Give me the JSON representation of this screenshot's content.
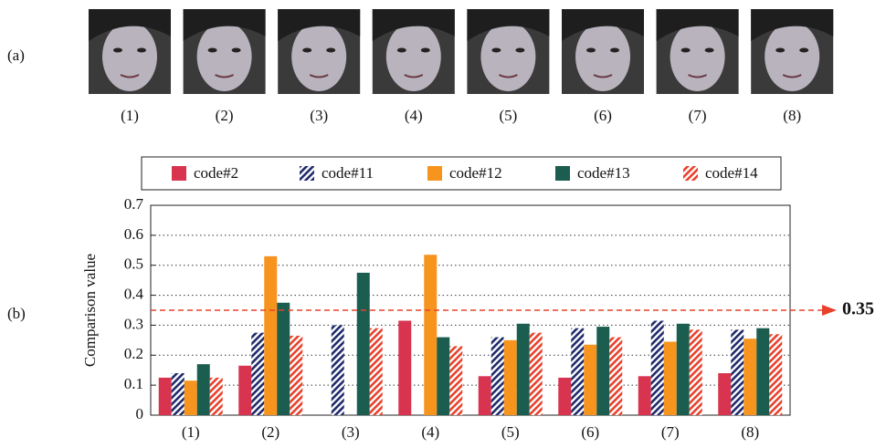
{
  "panel_labels": [
    "(a)",
    "(b)"
  ],
  "image_captions": [
    "(1)",
    "(2)",
    "(3)",
    "(4)",
    "(5)",
    "(6)",
    "(7)",
    "(8)"
  ],
  "chart_data": {
    "type": "bar",
    "y_label": "Comparison value",
    "categories": [
      "(1)",
      "(2)",
      "(3)",
      "(4)",
      "(5)",
      "(6)",
      "(7)",
      "(8)"
    ],
    "series": [
      {
        "name": "code#2",
        "color": "#d8344f",
        "hatch": false,
        "values": [
          0.125,
          0.165,
          null,
          0.315,
          0.13,
          0.125,
          0.13,
          0.14
        ]
      },
      {
        "name": "code#11",
        "color": "#1f2a6b",
        "hatch": true,
        "values": [
          0.14,
          0.275,
          0.3,
          null,
          0.26,
          0.29,
          0.315,
          0.285
        ]
      },
      {
        "name": "code#12",
        "color": "#f7941d",
        "hatch": false,
        "values": [
          0.115,
          0.53,
          null,
          0.535,
          0.25,
          0.235,
          0.245,
          0.255
        ]
      },
      {
        "name": "code#13",
        "color": "#1b5e4f",
        "hatch": false,
        "values": [
          0.17,
          0.375,
          0.475,
          0.26,
          0.305,
          0.295,
          0.305,
          0.29
        ]
      },
      {
        "name": "code#14",
        "color": "#e8412c",
        "hatch": true,
        "values": [
          0.125,
          0.265,
          0.29,
          0.23,
          0.275,
          0.26,
          0.285,
          0.27
        ]
      }
    ],
    "ylim": [
      0,
      0.7
    ],
    "yticks": [
      0,
      0.1,
      0.2,
      0.3,
      0.4,
      0.5,
      0.6,
      0.7
    ],
    "grid": true,
    "threshold": 0.35,
    "threshold_color": "#e8412c"
  }
}
